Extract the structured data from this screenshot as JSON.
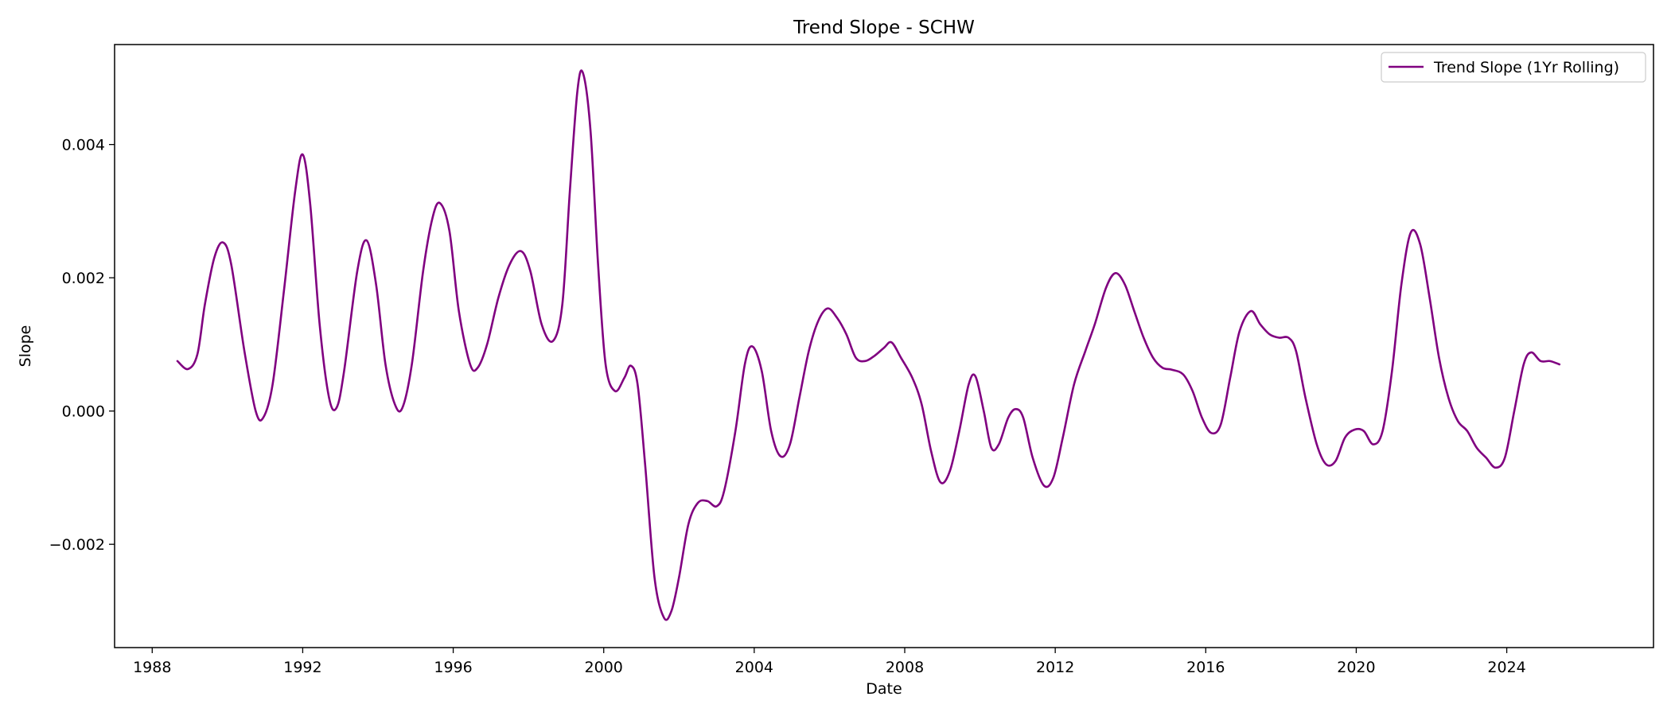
{
  "chart_data": {
    "type": "line",
    "title": "Trend Slope - SCHW",
    "xlabel": "Date",
    "ylabel": "Slope",
    "xlim": [
      1987.0,
      2027.9
    ],
    "ylim": [
      -0.00355,
      0.0055
    ],
    "x_ticks": [
      1988,
      1992,
      1996,
      2000,
      2004,
      2008,
      2012,
      2016,
      2020,
      2024
    ],
    "x_tick_labels": [
      "1988",
      "1992",
      "1996",
      "2000",
      "2004",
      "2008",
      "2012",
      "2016",
      "2020",
      "2024"
    ],
    "y_ticks": [
      -0.002,
      0.0,
      0.002,
      0.004
    ],
    "y_tick_labels": [
      "−0.002",
      "0.000",
      "0.002",
      "0.004"
    ],
    "grid": false,
    "legend": {
      "position": "top-right"
    },
    "series": [
      {
        "name": "Trend Slope (1Yr Rolling)",
        "color": "#800080",
        "points": [
          [
            1988.67,
            0.00075
          ],
          [
            1988.95,
            0.00063
          ],
          [
            1989.2,
            0.00085
          ],
          [
            1989.4,
            0.0016
          ],
          [
            1989.65,
            0.0023
          ],
          [
            1989.88,
            0.00253
          ],
          [
            1990.1,
            0.0022
          ],
          [
            1990.45,
            0.0009
          ],
          [
            1990.75,
            0.0
          ],
          [
            1990.95,
            -0.0001
          ],
          [
            1991.2,
            0.0004
          ],
          [
            1991.5,
            0.0018
          ],
          [
            1991.8,
            0.0033
          ],
          [
            1992.0,
            0.00385
          ],
          [
            1992.2,
            0.0031
          ],
          [
            1992.45,
            0.0013
          ],
          [
            1992.7,
            0.0002
          ],
          [
            1992.9,
            5e-05
          ],
          [
            1993.1,
            0.0006
          ],
          [
            1993.45,
            0.0021
          ],
          [
            1993.7,
            0.00256
          ],
          [
            1993.95,
            0.0019
          ],
          [
            1994.2,
            0.0007
          ],
          [
            1994.45,
            0.0001
          ],
          [
            1994.65,
            5e-05
          ],
          [
            1994.9,
            0.0007
          ],
          [
            1995.2,
            0.0021
          ],
          [
            1995.45,
            0.0029
          ],
          [
            1995.65,
            0.00312
          ],
          [
            1995.9,
            0.0027
          ],
          [
            1996.15,
            0.0015
          ],
          [
            1996.45,
            0.0007
          ],
          [
            1996.65,
            0.00065
          ],
          [
            1996.9,
            0.001
          ],
          [
            1997.2,
            0.0017
          ],
          [
            1997.5,
            0.0022
          ],
          [
            1997.8,
            0.0024
          ],
          [
            1998.05,
            0.0021
          ],
          [
            1998.35,
            0.0013
          ],
          [
            1998.65,
            0.00105
          ],
          [
            1998.9,
            0.0016
          ],
          [
            1999.1,
            0.0033
          ],
          [
            1999.3,
            0.0048
          ],
          [
            1999.45,
            0.00507
          ],
          [
            1999.65,
            0.0042
          ],
          [
            1999.85,
            0.0022
          ],
          [
            2000.05,
            0.0007
          ],
          [
            2000.3,
            0.0003
          ],
          [
            2000.55,
            0.0005
          ],
          [
            2000.72,
            0.00068
          ],
          [
            2000.9,
            0.0004
          ],
          [
            2001.1,
            -0.0008
          ],
          [
            2001.35,
            -0.0025
          ],
          [
            2001.6,
            -0.0031
          ],
          [
            2001.8,
            -0.003
          ],
          [
            2002.0,
            -0.0025
          ],
          [
            2002.25,
            -0.0017
          ],
          [
            2002.5,
            -0.00138
          ],
          [
            2002.75,
            -0.00135
          ],
          [
            2003.0,
            -0.00143
          ],
          [
            2003.2,
            -0.0012
          ],
          [
            2003.5,
            -0.0003
          ],
          [
            2003.75,
            0.0007
          ],
          [
            2003.95,
            0.00097
          ],
          [
            2004.2,
            0.0006
          ],
          [
            2004.45,
            -0.0003
          ],
          [
            2004.7,
            -0.00068
          ],
          [
            2004.95,
            -0.0005
          ],
          [
            2005.2,
            0.0002
          ],
          [
            2005.45,
            0.0009
          ],
          [
            2005.7,
            0.00135
          ],
          [
            2005.95,
            0.00154
          ],
          [
            2006.2,
            0.0014
          ],
          [
            2006.45,
            0.00115
          ],
          [
            2006.7,
            0.0008
          ],
          [
            2006.95,
            0.00075
          ],
          [
            2007.2,
            0.00083
          ],
          [
            2007.45,
            0.00095
          ],
          [
            2007.65,
            0.00103
          ],
          [
            2007.9,
            0.0008
          ],
          [
            2008.2,
            0.0005
          ],
          [
            2008.45,
            0.0001
          ],
          [
            2008.7,
            -0.0006
          ],
          [
            2008.95,
            -0.00107
          ],
          [
            2009.2,
            -0.0009
          ],
          [
            2009.45,
            -0.0003
          ],
          [
            2009.7,
            0.0004
          ],
          [
            2009.88,
            0.00052
          ],
          [
            2010.1,
            0.0
          ],
          [
            2010.3,
            -0.00055
          ],
          [
            2010.5,
            -0.0005
          ],
          [
            2010.75,
            -0.0001
          ],
          [
            2010.95,
            3e-05
          ],
          [
            2011.15,
            -0.0001
          ],
          [
            2011.4,
            -0.0007
          ],
          [
            2011.7,
            -0.00112
          ],
          [
            2011.95,
            -0.001
          ],
          [
            2012.2,
            -0.0004
          ],
          [
            2012.5,
            0.0004
          ],
          [
            2012.8,
            0.0009
          ],
          [
            2013.05,
            0.0013
          ],
          [
            2013.35,
            0.00185
          ],
          [
            2013.6,
            0.00207
          ],
          [
            2013.85,
            0.0019
          ],
          [
            2014.1,
            0.0015
          ],
          [
            2014.35,
            0.0011
          ],
          [
            2014.6,
            0.0008
          ],
          [
            2014.85,
            0.00065
          ],
          [
            2015.1,
            0.00062
          ],
          [
            2015.4,
            0.00055
          ],
          [
            2015.65,
            0.0003
          ],
          [
            2015.9,
            -0.0001
          ],
          [
            2016.15,
            -0.00033
          ],
          [
            2016.4,
            -0.0002
          ],
          [
            2016.65,
            0.0005
          ],
          [
            2016.9,
            0.0012
          ],
          [
            2017.2,
            0.0015
          ],
          [
            2017.45,
            0.0013
          ],
          [
            2017.7,
            0.00115
          ],
          [
            2017.95,
            0.0011
          ],
          [
            2018.2,
            0.0011
          ],
          [
            2018.4,
            0.0009
          ],
          [
            2018.65,
            0.0002
          ],
          [
            2018.95,
            -0.0005
          ],
          [
            2019.2,
            -0.0008
          ],
          [
            2019.45,
            -0.00075
          ],
          [
            2019.7,
            -0.0004
          ],
          [
            2019.95,
            -0.00028
          ],
          [
            2020.2,
            -0.0003
          ],
          [
            2020.45,
            -0.0005
          ],
          [
            2020.7,
            -0.0003
          ],
          [
            2020.95,
            0.0006
          ],
          [
            2021.2,
            0.0019
          ],
          [
            2021.45,
            0.00268
          ],
          [
            2021.7,
            0.0025
          ],
          [
            2021.95,
            0.0017
          ],
          [
            2022.2,
            0.0008
          ],
          [
            2022.45,
            0.0002
          ],
          [
            2022.7,
            -0.00015
          ],
          [
            2022.95,
            -0.0003
          ],
          [
            2023.2,
            -0.00055
          ],
          [
            2023.45,
            -0.0007
          ],
          [
            2023.7,
            -0.00085
          ],
          [
            2023.95,
            -0.0007
          ],
          [
            2024.2,
            0.0
          ],
          [
            2024.45,
            0.0007
          ],
          [
            2024.65,
            0.00088
          ],
          [
            2024.9,
            0.00075
          ],
          [
            2025.15,
            0.00075
          ],
          [
            2025.4,
            0.0007
          ]
        ]
      }
    ]
  }
}
